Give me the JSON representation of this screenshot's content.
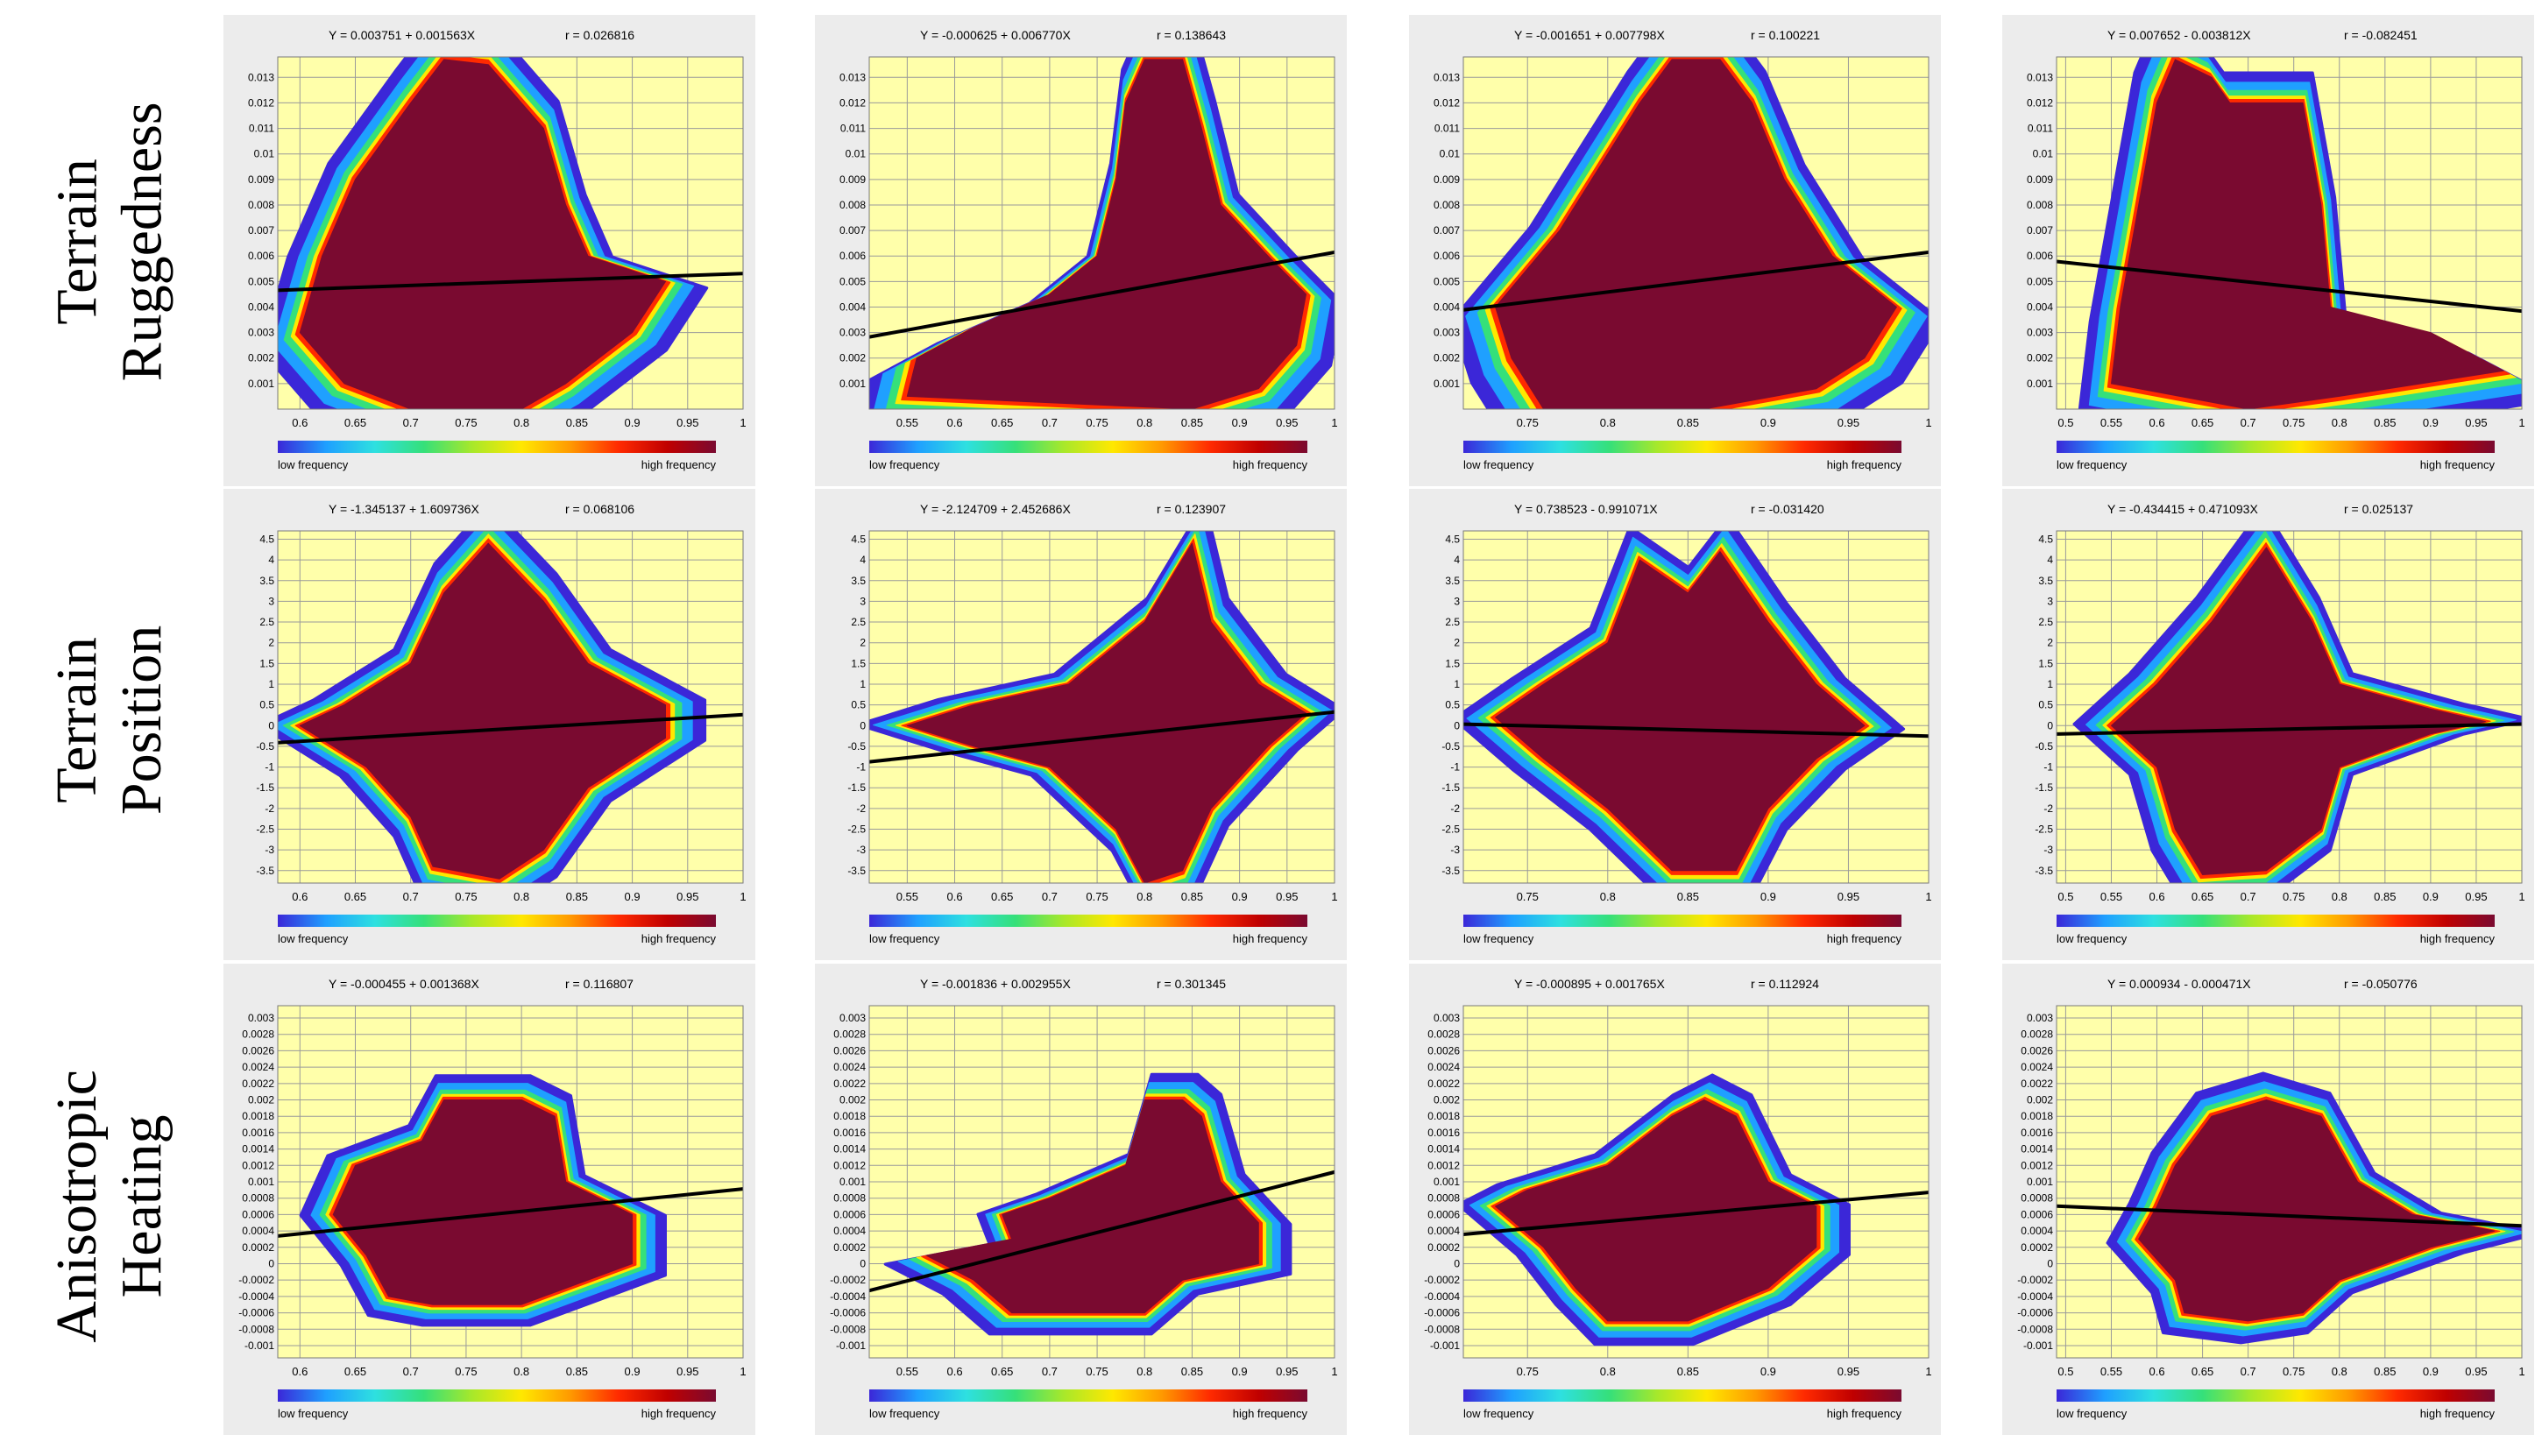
{
  "row_labels": [
    "Terrain\nRuggedness",
    "Terrain Position",
    "Anisotropic\nHeating"
  ],
  "colorbar": {
    "low_label": "low frequency",
    "high_label": "high frequency",
    "colors": [
      "#3b27d8",
      "#1fa0ff",
      "#2ee0e0",
      "#35e07a",
      "#a8e82a",
      "#ffe800",
      "#ff9a00",
      "#ff2a00",
      "#c00000",
      "#7a0a30"
    ]
  },
  "theme": {
    "panel_bg": "#ececec",
    "plot_bg": "#ffffaa",
    "grid": "#9a9a9a",
    "density_high": "#7a0a30",
    "regression_line": "#000000"
  },
  "chart_data": [
    {
      "type": "heatmap",
      "row": 0,
      "col": 0,
      "title": "Y = 0.003751 + 0.001563X",
      "r_label": "r = 0.026816",
      "xlim": [
        0.58,
        1.0
      ],
      "ylim": [
        0,
        0.0138
      ],
      "xticks": [
        0.6,
        0.65,
        0.7,
        0.75,
        0.8,
        0.85,
        0.9,
        0.95,
        1
      ],
      "yticks": [
        0.001,
        0.002,
        0.003,
        0.004,
        0.005,
        0.006,
        0.007,
        0.008,
        0.009,
        0.01,
        0.011,
        0.012,
        0.013
      ],
      "regression": {
        "intercept": 0.003751,
        "slope": 0.001563
      },
      "shape": [
        [
          0.7,
          0
        ],
        [
          0.64,
          0.001
        ],
        [
          0.6,
          0.003
        ],
        [
          0.62,
          0.006
        ],
        [
          0.65,
          0.009
        ],
        [
          0.7,
          0.012
        ],
        [
          0.73,
          0.0137
        ],
        [
          0.77,
          0.0135
        ],
        [
          0.82,
          0.011
        ],
        [
          0.84,
          0.008
        ],
        [
          0.86,
          0.006
        ],
        [
          0.93,
          0.005
        ],
        [
          0.9,
          0.003
        ],
        [
          0.84,
          0.001
        ],
        [
          0.8,
          0
        ]
      ]
    },
    {
      "type": "heatmap",
      "row": 0,
      "col": 1,
      "title": "Y = -0.000625 + 0.006770X",
      "r_label": "r = 0.138643",
      "xlim": [
        0.51,
        1.0
      ],
      "ylim": [
        0,
        0.0138
      ],
      "xticks": [
        0.55,
        0.6,
        0.65,
        0.7,
        0.75,
        0.8,
        0.85,
        0.9,
        0.95,
        1
      ],
      "yticks": [
        0.001,
        0.002,
        0.003,
        0.004,
        0.005,
        0.006,
        0.007,
        0.008,
        0.009,
        0.01,
        0.011,
        0.012,
        0.013
      ],
      "regression": {
        "intercept": -0.000625,
        "slope": 0.00677
      },
      "shape": [
        [
          0.55,
          0.0005
        ],
        [
          0.56,
          0.002
        ],
        [
          0.62,
          0.0032
        ],
        [
          0.7,
          0.0045
        ],
        [
          0.75,
          0.006
        ],
        [
          0.77,
          0.009
        ],
        [
          0.78,
          0.012
        ],
        [
          0.8,
          0.0137
        ],
        [
          0.84,
          0.0137
        ],
        [
          0.86,
          0.011
        ],
        [
          0.88,
          0.008
        ],
        [
          0.93,
          0.006
        ],
        [
          0.97,
          0.0045
        ],
        [
          0.96,
          0.0025
        ],
        [
          0.92,
          0.0008
        ],
        [
          0.85,
          0
        ]
      ]
    },
    {
      "type": "heatmap",
      "row": 0,
      "col": 2,
      "title": "Y = -0.001651 + 0.007798X",
      "r_label": "r = 0.100221",
      "xlim": [
        0.71,
        1.0
      ],
      "ylim": [
        0,
        0.0138
      ],
      "xticks": [
        0.75,
        0.8,
        0.85,
        0.9,
        0.95,
        1
      ],
      "yticks": [
        0.001,
        0.002,
        0.003,
        0.004,
        0.005,
        0.006,
        0.007,
        0.008,
        0.009,
        0.01,
        0.011,
        0.012,
        0.013
      ],
      "regression": {
        "intercept": -0.001651,
        "slope": 0.007798
      },
      "shape": [
        [
          0.76,
          0
        ],
        [
          0.74,
          0.002
        ],
        [
          0.73,
          0.004
        ],
        [
          0.77,
          0.007
        ],
        [
          0.8,
          0.01
        ],
        [
          0.82,
          0.012
        ],
        [
          0.84,
          0.0137
        ],
        [
          0.87,
          0.0137
        ],
        [
          0.89,
          0.012
        ],
        [
          0.91,
          0.009
        ],
        [
          0.94,
          0.006
        ],
        [
          0.98,
          0.004
        ],
        [
          0.96,
          0.002
        ],
        [
          0.93,
          0.0008
        ],
        [
          0.86,
          0
        ]
      ]
    },
    {
      "type": "heatmap",
      "row": 0,
      "col": 3,
      "title": "Y = 0.007652 - 0.003812X",
      "r_label": "r = -0.082451",
      "xlim": [
        0.49,
        1.0
      ],
      "ylim": [
        0,
        0.0138
      ],
      "xticks": [
        0.5,
        0.55,
        0.6,
        0.65,
        0.7,
        0.75,
        0.8,
        0.85,
        0.9,
        0.95,
        1
      ],
      "yticks": [
        0.001,
        0.002,
        0.003,
        0.004,
        0.005,
        0.006,
        0.007,
        0.008,
        0.009,
        0.01,
        0.011,
        0.012,
        0.013
      ],
      "regression": {
        "intercept": 0.007652,
        "slope": -0.003812
      },
      "shape": [
        [
          0.55,
          0.001
        ],
        [
          0.56,
          0.004
        ],
        [
          0.58,
          0.008
        ],
        [
          0.6,
          0.012
        ],
        [
          0.62,
          0.0137
        ],
        [
          0.66,
          0.013
        ],
        [
          0.68,
          0.012
        ],
        [
          0.76,
          0.012
        ],
        [
          0.78,
          0.008
        ],
        [
          0.79,
          0.004
        ],
        [
          0.9,
          0.003
        ],
        [
          0.98,
          0.0015
        ],
        [
          0.8,
          0.0005
        ],
        [
          0.7,
          0
        ]
      ]
    },
    {
      "type": "heatmap",
      "row": 1,
      "col": 0,
      "title": "Y = -1.345137 + 1.609736X",
      "r_label": "r = 0.068106",
      "xlim": [
        0.58,
        1.0
      ],
      "ylim": [
        -3.8,
        4.7
      ],
      "xticks": [
        0.6,
        0.65,
        0.7,
        0.75,
        0.8,
        0.85,
        0.9,
        0.95,
        1
      ],
      "yticks": [
        -3.5,
        -3,
        -2.5,
        -2,
        -1.5,
        -1,
        -0.5,
        0,
        0.5,
        1,
        1.5,
        2,
        2.5,
        3,
        3.5,
        4,
        4.5
      ],
      "regression": {
        "intercept": -1.345137,
        "slope": 1.609736
      },
      "shape": [
        [
          0.6,
          0
        ],
        [
          0.66,
          -1
        ],
        [
          0.7,
          -2.2
        ],
        [
          0.72,
          -3.4
        ],
        [
          0.78,
          -3.7
        ],
        [
          0.82,
          -3
        ],
        [
          0.86,
          -1.5
        ],
        [
          0.93,
          -0.3
        ],
        [
          0.93,
          0.5
        ],
        [
          0.86,
          1.5
        ],
        [
          0.82,
          3
        ],
        [
          0.77,
          4.4
        ],
        [
          0.73,
          3.2
        ],
        [
          0.7,
          1.5
        ],
        [
          0.64,
          0.5
        ]
      ]
    },
    {
      "type": "heatmap",
      "row": 1,
      "col": 1,
      "title": "Y = -2.124709 + 2.452686X",
      "r_label": "r = 0.123907",
      "xlim": [
        0.51,
        1.0
      ],
      "ylim": [
        -3.8,
        4.7
      ],
      "xticks": [
        0.55,
        0.6,
        0.65,
        0.7,
        0.75,
        0.8,
        0.85,
        0.9,
        0.95,
        1
      ],
      "yticks": [
        -3.5,
        -3,
        -2.5,
        -2,
        -1.5,
        -1,
        -0.5,
        0,
        0.5,
        1,
        1.5,
        2,
        2.5,
        3,
        3.5,
        4,
        4.5
      ],
      "regression": {
        "intercept": -2.124709,
        "slope": 2.452686
      },
      "shape": [
        [
          0.55,
          0
        ],
        [
          0.62,
          -0.5
        ],
        [
          0.7,
          -1
        ],
        [
          0.77,
          -2.5
        ],
        [
          0.8,
          -3.8
        ],
        [
          0.84,
          -3.5
        ],
        [
          0.87,
          -2
        ],
        [
          0.93,
          -0.5
        ],
        [
          0.97,
          0.3
        ],
        [
          0.92,
          1
        ],
        [
          0.87,
          2.5
        ],
        [
          0.85,
          4.4
        ],
        [
          0.8,
          2.5
        ],
        [
          0.72,
          1
        ],
        [
          0.62,
          0.5
        ]
      ]
    },
    {
      "type": "heatmap",
      "row": 1,
      "col": 2,
      "title": "Y = 0.738523 - 0.991071X",
      "r_label": "r = -0.031420",
      "xlim": [
        0.71,
        1.0
      ],
      "ylim": [
        -3.8,
        4.7
      ],
      "xticks": [
        0.75,
        0.8,
        0.85,
        0.9,
        0.95,
        1
      ],
      "yticks": [
        -3.5,
        -3,
        -2.5,
        -2,
        -1.5,
        -1,
        -0.5,
        0,
        0.5,
        1,
        1.5,
        2,
        2.5,
        3,
        3.5,
        4,
        4.5
      ],
      "regression": {
        "intercept": 0.738523,
        "slope": -0.991071
      },
      "shape": [
        [
          0.73,
          0.2
        ],
        [
          0.76,
          -0.8
        ],
        [
          0.8,
          -2
        ],
        [
          0.84,
          -3.5
        ],
        [
          0.88,
          -3.5
        ],
        [
          0.9,
          -2
        ],
        [
          0.93,
          -0.8
        ],
        [
          0.96,
          0
        ],
        [
          0.93,
          1
        ],
        [
          0.9,
          2.5
        ],
        [
          0.87,
          4.2
        ],
        [
          0.85,
          3.2
        ],
        [
          0.82,
          4
        ],
        [
          0.8,
          2
        ],
        [
          0.76,
          1
        ]
      ]
    },
    {
      "type": "heatmap",
      "row": 1,
      "col": 3,
      "title": "Y = -0.434415 + 0.471093X",
      "r_label": "r = 0.025137",
      "xlim": [
        0.49,
        1.0
      ],
      "ylim": [
        -3.8,
        4.7
      ],
      "xticks": [
        0.5,
        0.55,
        0.6,
        0.65,
        0.7,
        0.75,
        0.8,
        0.85,
        0.9,
        0.95,
        1
      ],
      "yticks": [
        -3.5,
        -3,
        -2.5,
        -2,
        -1.5,
        -1,
        -0.5,
        0,
        0.5,
        1,
        1.5,
        2,
        2.5,
        3,
        3.5,
        4,
        4.5
      ],
      "regression": {
        "intercept": -0.434415,
        "slope": 0.471093
      },
      "shape": [
        [
          0.55,
          0
        ],
        [
          0.6,
          -1
        ],
        [
          0.62,
          -2.5
        ],
        [
          0.65,
          -3.6
        ],
        [
          0.72,
          -3.5
        ],
        [
          0.78,
          -2.5
        ],
        [
          0.8,
          -1
        ],
        [
          0.9,
          -0.2
        ],
        [
          0.96,
          0.1
        ],
        [
          0.9,
          0.4
        ],
        [
          0.8,
          1
        ],
        [
          0.77,
          2.5
        ],
        [
          0.72,
          4.3
        ],
        [
          0.66,
          2.5
        ],
        [
          0.6,
          1
        ]
      ]
    },
    {
      "type": "heatmap",
      "row": 2,
      "col": 0,
      "title": "Y = -0.000455 + 0.001368X",
      "r_label": "r = 0.116807",
      "xlim": [
        0.58,
        1.0
      ],
      "ylim": [
        -0.00115,
        0.00315
      ],
      "xticks": [
        0.6,
        0.65,
        0.7,
        0.75,
        0.8,
        0.85,
        0.9,
        0.95,
        1
      ],
      "yticks": [
        -0.001,
        -0.0008,
        -0.0006,
        -0.0004,
        -0.0002,
        0,
        0.0002,
        0.0004,
        0.0006,
        0.0008,
        0.001,
        0.0012,
        0.0014,
        0.0016,
        0.0018,
        0.002,
        0.0022,
        0.0024,
        0.0026,
        0.0028,
        0.003
      ],
      "regression": {
        "intercept": -0.000455,
        "slope": 0.001368
      },
      "shape": [
        [
          0.66,
          0.0001
        ],
        [
          0.68,
          -0.0004
        ],
        [
          0.72,
          -0.0005
        ],
        [
          0.8,
          -0.0005
        ],
        [
          0.84,
          -0.0003
        ],
        [
          0.9,
          0
        ],
        [
          0.9,
          0.0006
        ],
        [
          0.84,
          0.001
        ],
        [
          0.83,
          0.0018
        ],
        [
          0.8,
          0.002
        ],
        [
          0.73,
          0.002
        ],
        [
          0.71,
          0.0015
        ],
        [
          0.65,
          0.0012
        ],
        [
          0.63,
          0.0006
        ]
      ]
    },
    {
      "type": "heatmap",
      "row": 2,
      "col": 1,
      "title": "Y = -0.001836 + 0.002955X",
      "r_label": "r = 0.301345",
      "xlim": [
        0.51,
        1.0
      ],
      "ylim": [
        -0.00115,
        0.00315
      ],
      "xticks": [
        0.55,
        0.6,
        0.65,
        0.7,
        0.75,
        0.8,
        0.85,
        0.9,
        0.95,
        1
      ],
      "yticks": [
        -0.001,
        -0.0008,
        -0.0006,
        -0.0004,
        -0.0002,
        0,
        0.0002,
        0.0004,
        0.0006,
        0.0008,
        0.001,
        0.0012,
        0.0014,
        0.0016,
        0.0018,
        0.002,
        0.0022,
        0.0024,
        0.0026,
        0.0028,
        0.003
      ],
      "regression": {
        "intercept": -0.001836,
        "slope": 0.002955
      },
      "shape": [
        [
          0.57,
          0.0001
        ],
        [
          0.62,
          -0.0002
        ],
        [
          0.66,
          -0.0006
        ],
        [
          0.8,
          -0.0006
        ],
        [
          0.84,
          -0.0002
        ],
        [
          0.92,
          0
        ],
        [
          0.92,
          0.0005
        ],
        [
          0.88,
          0.001
        ],
        [
          0.86,
          0.0018
        ],
        [
          0.84,
          0.002
        ],
        [
          0.8,
          0.002
        ],
        [
          0.78,
          0.0012
        ],
        [
          0.7,
          0.0008
        ],
        [
          0.65,
          0.0006
        ],
        [
          0.66,
          0.0003
        ]
      ]
    },
    {
      "type": "heatmap",
      "row": 2,
      "col": 2,
      "title": "Y = -0.000895 + 0.001765X",
      "r_label": "r = 0.112924",
      "xlim": [
        0.71,
        1.0
      ],
      "ylim": [
        -0.00115,
        0.00315
      ],
      "xticks": [
        0.75,
        0.8,
        0.85,
        0.9,
        0.95,
        1
      ],
      "yticks": [
        -0.001,
        -0.0008,
        -0.0006,
        -0.0004,
        -0.0002,
        0,
        0.0002,
        0.0004,
        0.0006,
        0.0008,
        0.001,
        0.0012,
        0.0014,
        0.0016,
        0.0018,
        0.002,
        0.0022,
        0.0024,
        0.0026,
        0.0028,
        0.003
      ],
      "regression": {
        "intercept": -0.000895,
        "slope": 0.001765
      },
      "shape": [
        [
          0.73,
          0.0007
        ],
        [
          0.76,
          0.0002
        ],
        [
          0.78,
          -0.0003
        ],
        [
          0.8,
          -0.0007
        ],
        [
          0.85,
          -0.0007
        ],
        [
          0.9,
          -0.0003
        ],
        [
          0.93,
          0.0002
        ],
        [
          0.93,
          0.0007
        ],
        [
          0.9,
          0.001
        ],
        [
          0.88,
          0.0018
        ],
        [
          0.86,
          0.002
        ],
        [
          0.84,
          0.0018
        ],
        [
          0.8,
          0.0012
        ],
        [
          0.75,
          0.0009
        ]
      ]
    },
    {
      "type": "heatmap",
      "row": 2,
      "col": 3,
      "title": "Y = 0.000934 - 0.000471X",
      "r_label": "r = -0.050776",
      "xlim": [
        0.49,
        1.0
      ],
      "ylim": [
        -0.00115,
        0.00315
      ],
      "xticks": [
        0.5,
        0.55,
        0.6,
        0.65,
        0.7,
        0.75,
        0.8,
        0.85,
        0.9,
        0.95,
        1
      ],
      "yticks": [
        -0.001,
        -0.0008,
        -0.0006,
        -0.0004,
        -0.0002,
        0,
        0.0002,
        0.0004,
        0.0006,
        0.0008,
        0.001,
        0.0012,
        0.0014,
        0.0016,
        0.0018,
        0.002,
        0.0022,
        0.0024,
        0.0026,
        0.0028,
        0.003
      ],
      "regression": {
        "intercept": 0.000934,
        "slope": -0.000471
      },
      "shape": [
        [
          0.58,
          0.0003
        ],
        [
          0.62,
          -0.0002
        ],
        [
          0.63,
          -0.0006
        ],
        [
          0.7,
          -0.0007
        ],
        [
          0.76,
          -0.0006
        ],
        [
          0.8,
          -0.0002
        ],
        [
          0.9,
          0.0002
        ],
        [
          0.97,
          0.0004
        ],
        [
          0.88,
          0.0006
        ],
        [
          0.82,
          0.001
        ],
        [
          0.78,
          0.0018
        ],
        [
          0.72,
          0.002
        ],
        [
          0.66,
          0.0018
        ],
        [
          0.62,
          0.0012
        ],
        [
          0.6,
          0.0007
        ]
      ]
    }
  ]
}
